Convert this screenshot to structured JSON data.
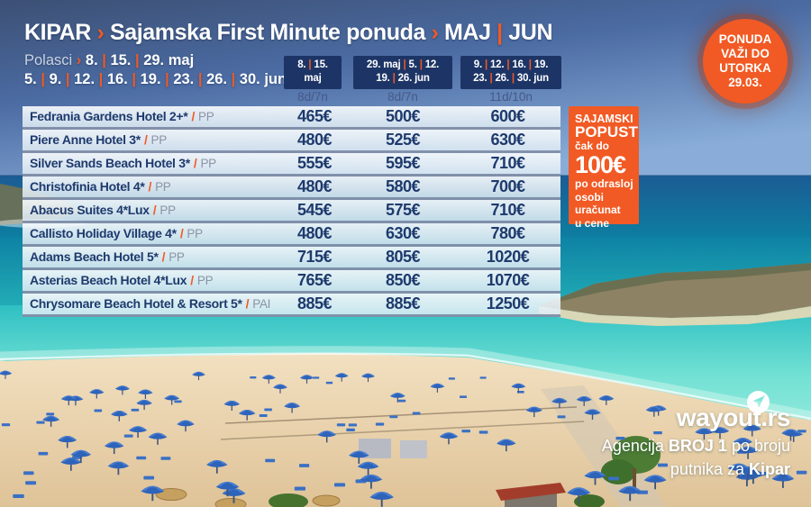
{
  "colors": {
    "accent_orange": "#f15a24",
    "navy_text": "#1e3a6d",
    "header_box_navy": "#1d3566",
    "sea_turquoise": "#2fc0c3",
    "umbrella_blue": "#2e63ba"
  },
  "header": {
    "destination": "KIPAR",
    "sep1": "›",
    "title": "Sajamska First Minute ponuda",
    "sep2": "›",
    "months": "MAJ | JUN",
    "departures_label": "Polasci",
    "departures_sep": "›",
    "departures_line1": "8. | 15. | 29. maj",
    "departures_line2": "5. | 9. | 12. | 16. | 19. | 23. | 26. | 30. jun"
  },
  "columns": [
    {
      "dates_line1": "8. | 15.",
      "dates_line2": "maj",
      "duration": "8d/7n"
    },
    {
      "dates_line1": "29. maj | 5. | 12.",
      "dates_line2": "19. | 26. jun",
      "duration": "8d/7n"
    },
    {
      "dates_line1": "9. | 12. | 16. | 19.",
      "dates_line2": "23. | 26. | 30. jun",
      "duration": "11d/10n"
    }
  ],
  "table": {
    "slash": "/"
  },
  "hotels": [
    {
      "name": "Fedrania Gardens Hotel 2+*",
      "board": "PP",
      "prices": [
        "465€",
        "500€",
        "600€"
      ]
    },
    {
      "name": "Piere Anne Hotel 3*",
      "board": "PP",
      "prices": [
        "480€",
        "525€",
        "630€"
      ]
    },
    {
      "name": "Silver Sands Beach Hotel 3*",
      "board": "PP",
      "prices": [
        "555€",
        "595€",
        "710€"
      ]
    },
    {
      "name": "Christofinia Hotel 4*",
      "board": "PP",
      "prices": [
        "480€",
        "580€",
        "700€"
      ]
    },
    {
      "name": "Abacus Suites 4*Lux",
      "board": "PP",
      "prices": [
        "545€",
        "575€",
        "710€"
      ]
    },
    {
      "name": "Callisto Holiday Village 4*",
      "board": "PP",
      "prices": [
        "480€",
        "630€",
        "780€"
      ]
    },
    {
      "name": "Adams Beach Hotel 5*",
      "board": "PP",
      "prices": [
        "715€",
        "805€",
        "1020€"
      ]
    },
    {
      "name": "Asterias Beach Hotel 4*Lux",
      "board": "PP",
      "prices": [
        "765€",
        "850€",
        "1070€"
      ]
    },
    {
      "name": "Chrysomare Beach Hotel & Resort 5*",
      "board": "PAI",
      "prices": [
        "885€",
        "885€",
        "1250€"
      ]
    }
  ],
  "discount_box": {
    "title_top": "SAJAMSKI",
    "title_main": "POPUST",
    "lead": "čak do",
    "amount": "100€",
    "note_lines": [
      "po odrasloj",
      "osobi",
      "uračunat",
      "u cene"
    ]
  },
  "badge": {
    "line1": "PONUDA",
    "line2": "VAŽI DO",
    "line3": "UTORKA",
    "line4": "29.03."
  },
  "logo": {
    "icon": "paper-plane-icon",
    "brand": "wayout.rs",
    "tagline_pre": "Agencija ",
    "tagline_bold1": "BROJ 1",
    "tagline_mid": " po broju",
    "tagline_line2_pre": "putnika za ",
    "tagline_bold2": "Kipar"
  }
}
